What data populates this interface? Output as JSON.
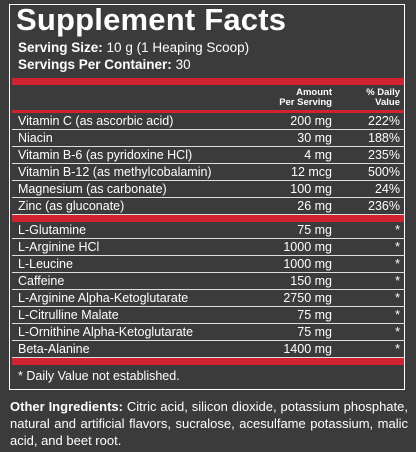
{
  "header": {
    "title": "Supplement Facts",
    "serving_size": {
      "label": "Serving Size:",
      "value": "10 g (1 Heaping Scoop)"
    },
    "servings": {
      "label": "Servings Per Container:",
      "value": "30"
    }
  },
  "columns": {
    "amount": [
      "Amount",
      "Per Serving"
    ],
    "dv": [
      "% Daily",
      "Value"
    ]
  },
  "sections": [
    [
      [
        "Vitamin C (as ascorbic acid)",
        "200 mg",
        "222%"
      ],
      [
        "Niacin",
        "30 mg",
        "188%"
      ],
      [
        "Vitamin B-6 (as pyridoxine HCl)",
        "4 mg",
        "235%"
      ],
      [
        "Vitamin B-12 (as methylcobalamin)",
        "12 mcg",
        "500%"
      ],
      [
        "Magnesium (as carbonate)",
        "100 mg",
        "24%"
      ],
      [
        "Zinc (as gluconate)",
        "26 mg",
        "236%"
      ]
    ],
    [
      [
        "L-Glutamine",
        "75 mg",
        "*"
      ],
      [
        "L-Arginine HCl",
        "1000 mg",
        "*"
      ],
      [
        "L-Leucine",
        "1000 mg",
        "*"
      ],
      [
        "Caffeine",
        "150 mg",
        "*"
      ],
      [
        "L-Arginine Alpha-Ketoglutarate",
        "2750 mg",
        "*"
      ],
      [
        "L-Citrulline Malate",
        "75 mg",
        "*"
      ],
      [
        "L-Ornithine Alpha-Ketoglutarate",
        "75 mg",
        "*"
      ],
      [
        "Beta-Alanine",
        "1400 mg",
        "*"
      ]
    ]
  ],
  "footnote": "* Daily Value not established.",
  "other_ingredients": {
    "label": "Other Ingredients:",
    "text": " Citric acid, silicon dioxide, potassium phosphate, natural and artificial flavors, sucralose, acesulfame potassium, malic acid, and beet root."
  }
}
